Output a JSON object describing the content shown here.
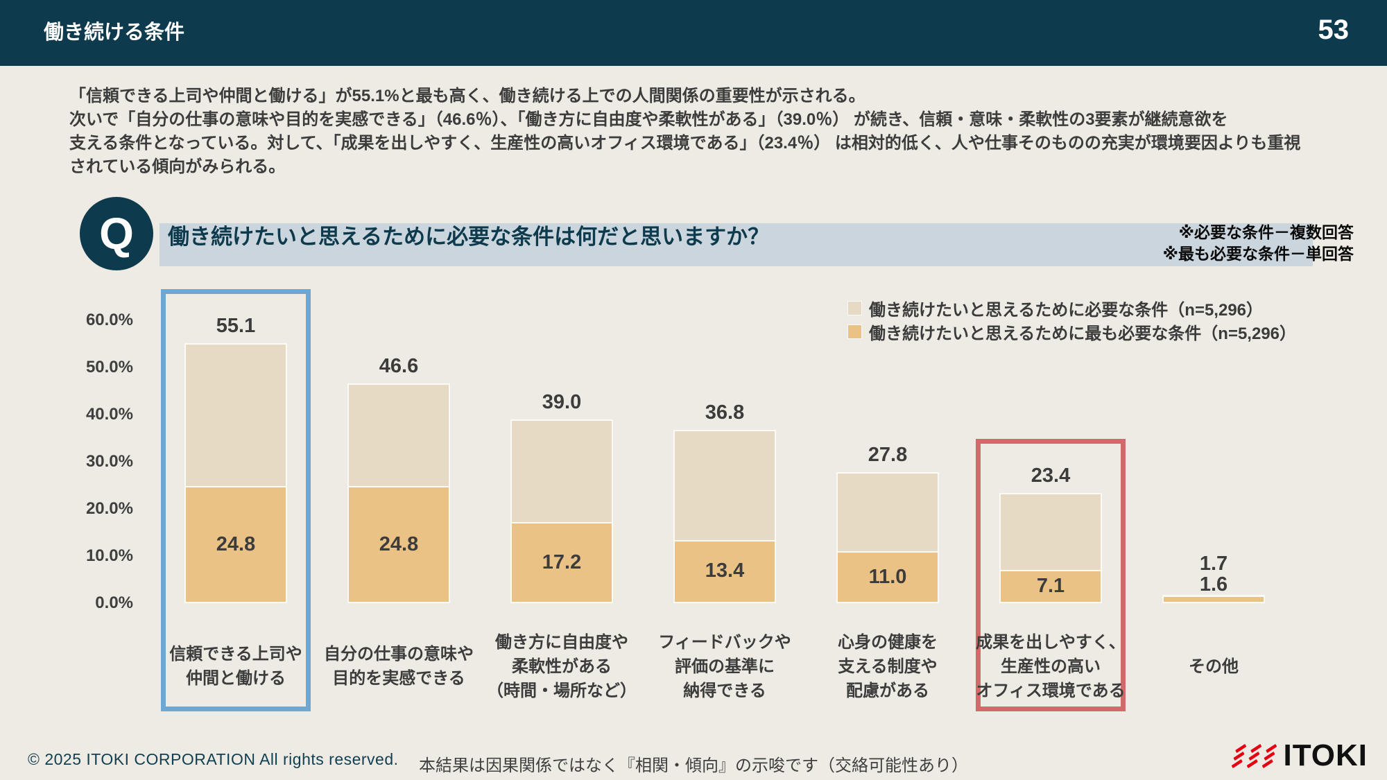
{
  "header": {
    "title": "働き続ける条件",
    "page_number": "53"
  },
  "summary": {
    "text": "「信頼できる上司や仲間と働ける」が55.1%と最も高く、働き続ける上での人間関係の重要性が示される。\n次いで「自分の仕事の意味や目的を実感できる」（46.6％）、「働き方に自由度や柔軟性がある」（39.0％） が続き、信頼・意味・柔軟性の3要素が継続意欲を\n支える条件となっている。対して、「成果を出しやすく、生産性の高いオフィス環境である」（23.4％） は相対的低く、人や仕事そのものの充実が環境要因よりも重視\nされている傾向がみられる。"
  },
  "question": {
    "badge": "Q",
    "text": "働き続けたいと思えるために必要な条件は何だと思いますか？",
    "notes": [
      "※必要な条件－複数回答",
      "※最も必要な条件－単回答"
    ]
  },
  "chart_data": {
    "type": "bar",
    "categories": [
      "信頼できる上司や\n仲間と働ける",
      "自分の仕事の意味や\n目的を実感できる",
      "働き方に自由度や\n柔軟性がある\n（時間・場所など）",
      "フィードバックや\n評価の基準に\n納得できる",
      "心身の健康を\n支える制度や\n配慮がある",
      "成果を出しやすく、\n生産性の高い\nオフィス環境である",
      "その他"
    ],
    "series": [
      {
        "name": "働き続けたいと思えるために必要な条件（n=5,296）",
        "values": [
          55.1,
          46.6,
          39.0,
          36.8,
          27.8,
          23.4,
          1.7
        ],
        "color": "#e6dac5"
      },
      {
        "name": "働き続けたいと思えるために最も必要な条件（n=5,296）",
        "values": [
          24.8,
          24.8,
          17.2,
          13.4,
          11.0,
          7.1,
          1.6
        ],
        "color": "#ebc286"
      }
    ],
    "yticks": [
      "60.0%",
      "50.0%",
      "40.0%",
      "30.0%",
      "20.0%",
      "10.0%",
      "0.0%"
    ],
    "ylim": [
      0,
      60
    ],
    "grid": false,
    "legend_position": "top-right",
    "highlights": [
      {
        "index": 0,
        "color": "#6fa7d4"
      },
      {
        "index": 5,
        "color": "#d4696b"
      }
    ]
  },
  "footer": {
    "copyright": "© 2025 ITOKI CORPORATION  All rights reserved.",
    "note": "本結果は因果関係ではなく『相関・傾向』の示唆です（交絡可能性あり）",
    "logo_text": "ITOKI",
    "logo_color": "#e60012"
  }
}
